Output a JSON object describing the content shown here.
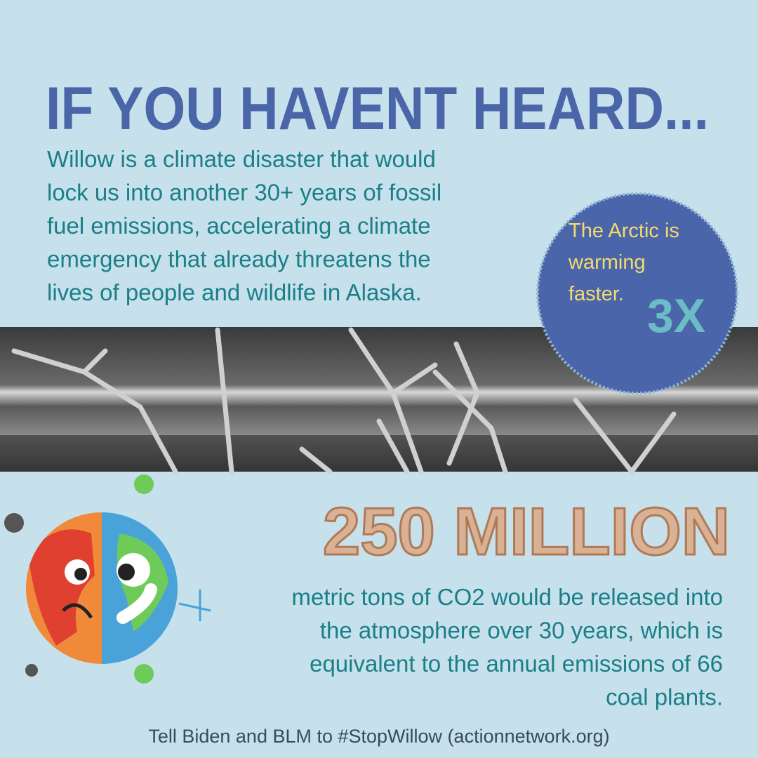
{
  "header": {
    "title": "IF YOU HAVENT HEARD..."
  },
  "intro": {
    "lines": [
      "Willow is a climate disaster that would",
      "lock us into another 30+ years of fossil",
      "fuel emissions, accelerating a climate",
      "emergency that already threatens the",
      "lives of people and wildlife in Alaska."
    ]
  },
  "callout": {
    "lines": [
      "The Arctic is",
      "warming",
      "faster."
    ],
    "figure": "3X"
  },
  "stat": {
    "figure": "250 MILLION",
    "lines": [
      "metric tons of CO2 would be released into",
      "the atmosphere over 30 years, which is",
      "equivalent to the annual emissions of 66",
      "coal plants."
    ]
  },
  "footer": {
    "text": "Tell Biden and BLM to #StopWillow (actionnetwork.org)"
  }
}
